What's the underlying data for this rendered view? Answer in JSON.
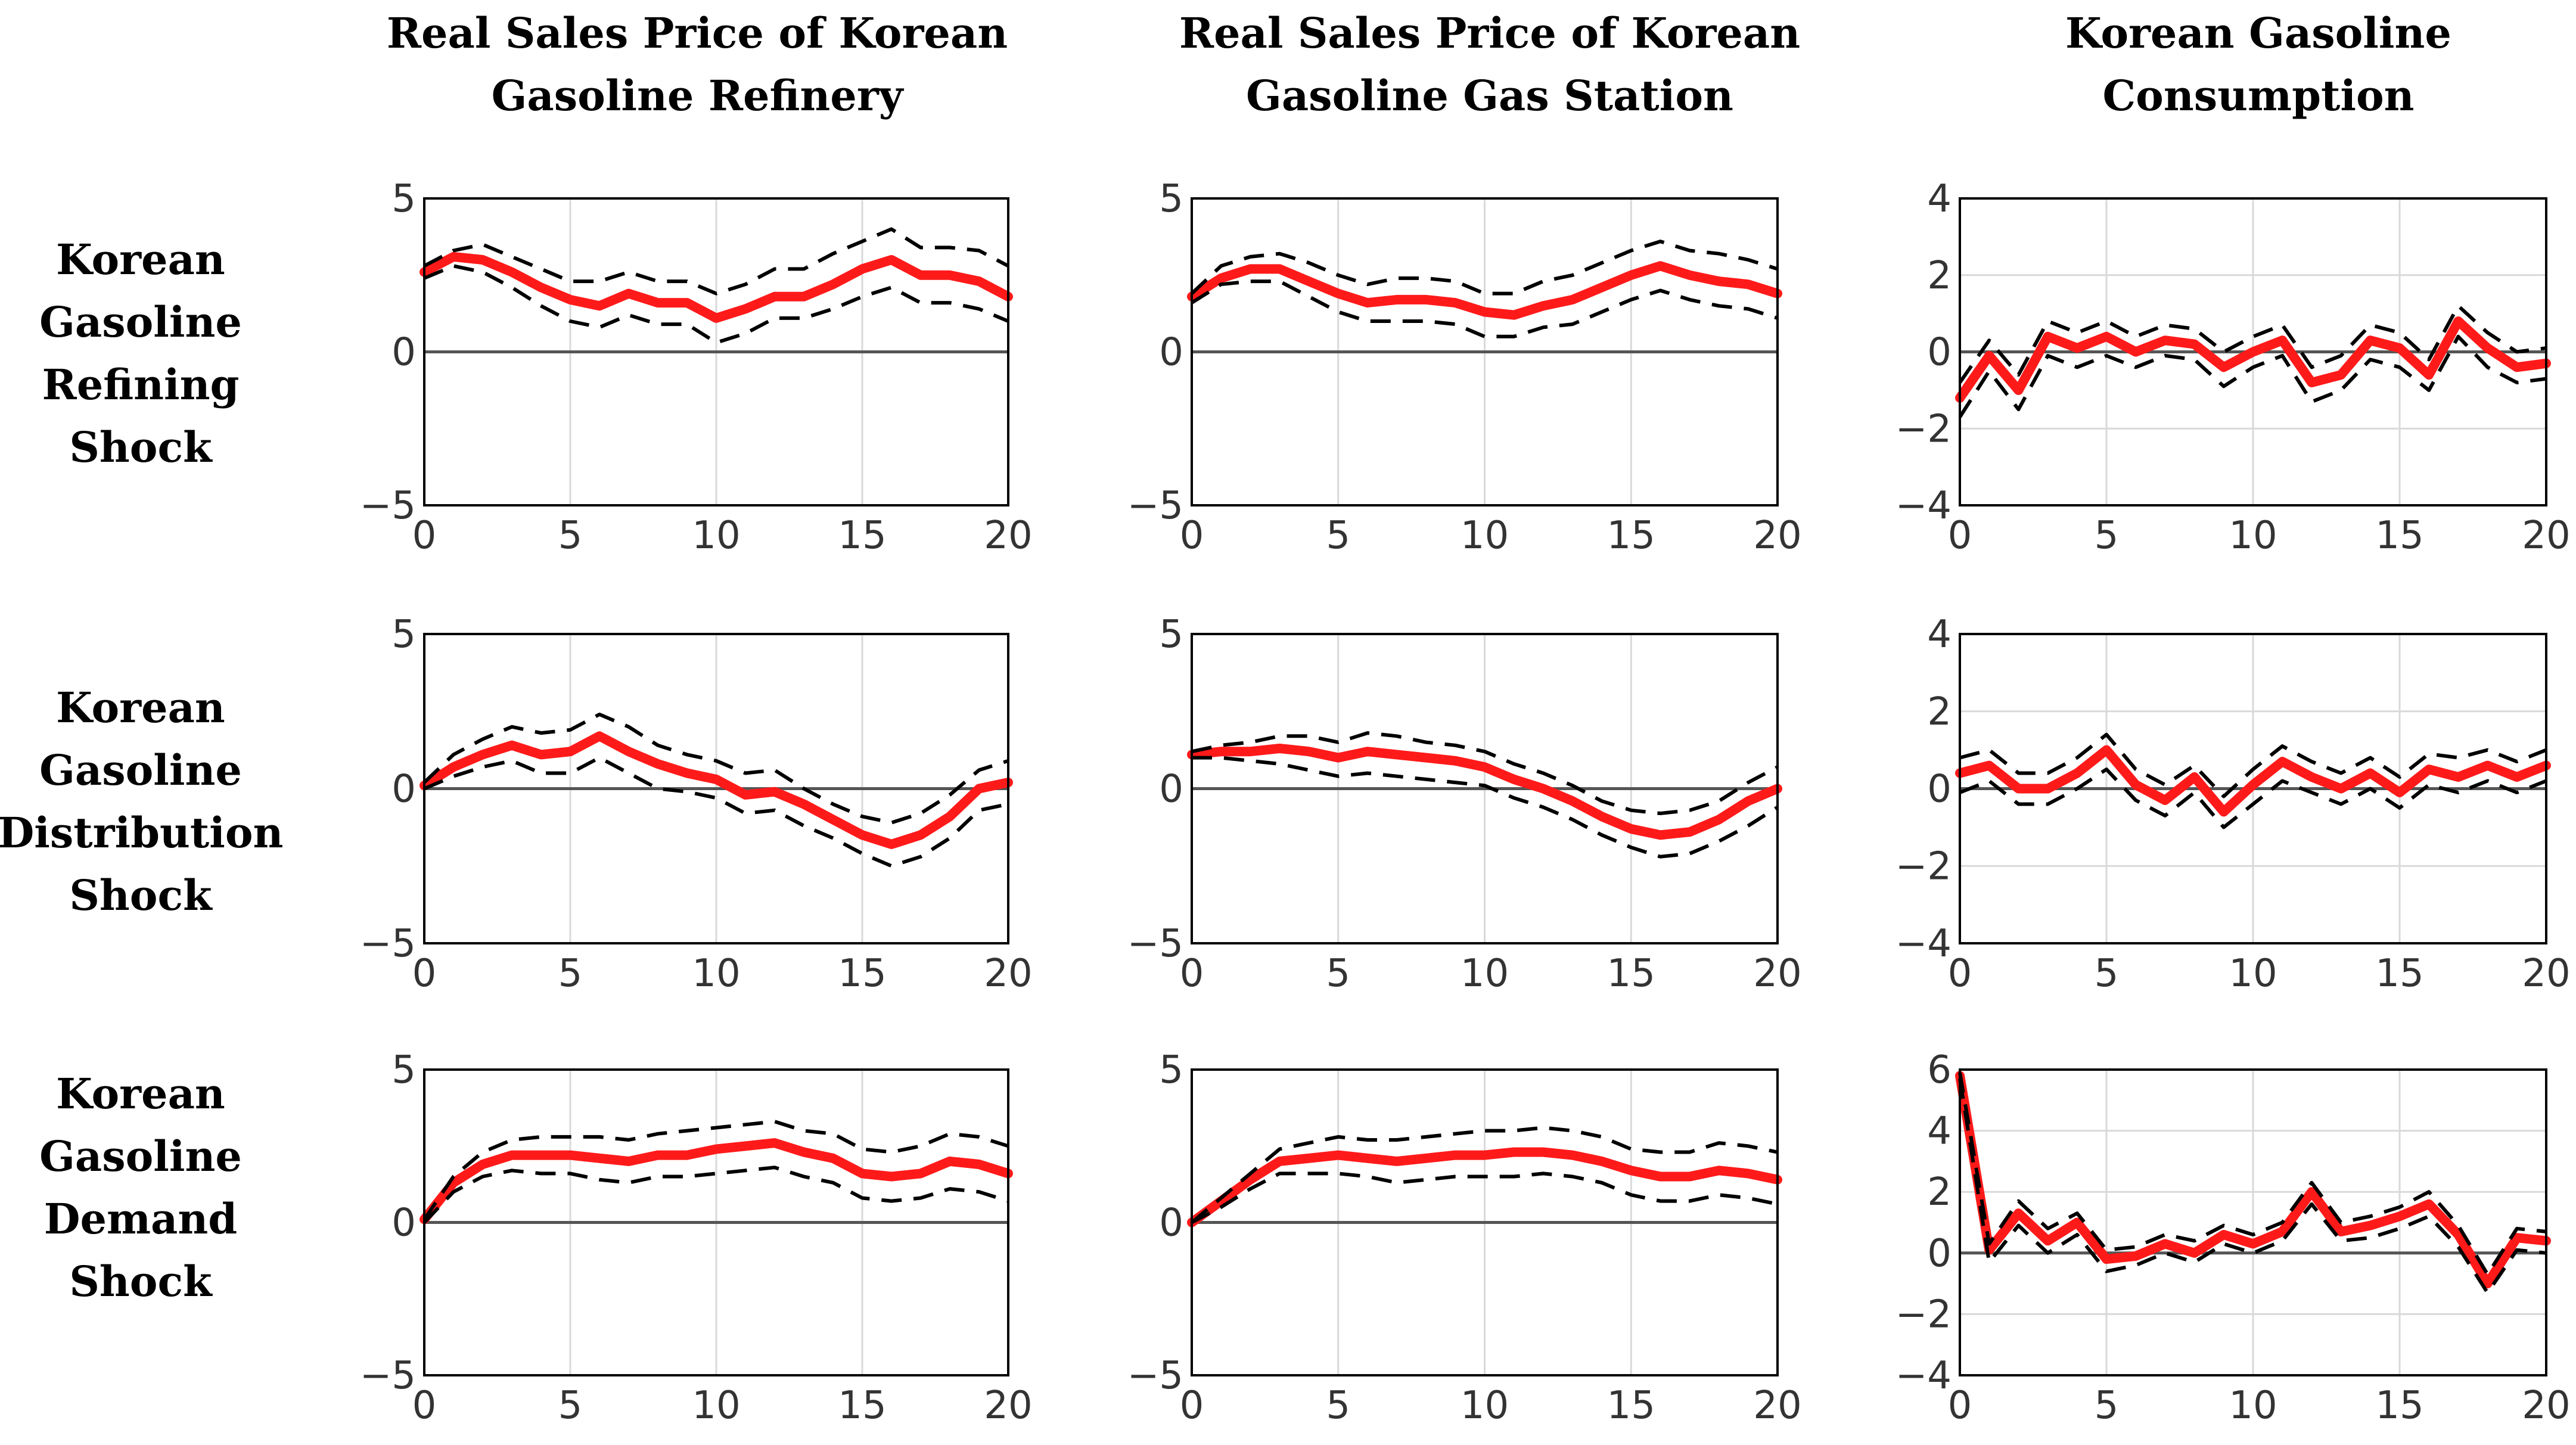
{
  "figure": {
    "column_titles": [
      [
        "Real Sales Price of Korean",
        "Gasoline Refinery"
      ],
      [
        "Real Sales Price of Korean",
        "Gasoline Gas Station"
      ],
      [
        "Korean Gasoline",
        "Consumption"
      ]
    ],
    "row_labels": [
      [
        "Korean",
        "Gasoline",
        "Refining",
        "Shock"
      ],
      [
        "Korean",
        "Gasoline",
        "Distribution",
        "Shock"
      ],
      [
        "Korean",
        "Gasoline",
        "Demand",
        "Shock"
      ]
    ]
  },
  "colors": {
    "response": "#ff1a1a",
    "bands": "#000000",
    "zero_line": "#555555",
    "grid": "#d9d9d9",
    "frame": "#000000"
  },
  "chart_data": [
    {
      "type": "line",
      "shock": "Korean Gasoline Refining Shock",
      "variable": "Real Sales Price of Korean Gasoline Refinery",
      "x": [
        0,
        1,
        2,
        3,
        4,
        5,
        6,
        7,
        8,
        9,
        10,
        11,
        12,
        13,
        14,
        15,
        16,
        17,
        18,
        19,
        20
      ],
      "xlim": [
        0,
        20
      ],
      "ylim": [
        -5,
        5
      ],
      "xticks": [
        0,
        5,
        10,
        15,
        20
      ],
      "yticks": [
        -5,
        0,
        5
      ],
      "ytick_labels": [
        "−5",
        "0",
        "5"
      ],
      "series": [
        {
          "name": "response",
          "values": [
            2.6,
            3.1,
            3.0,
            2.6,
            2.1,
            1.7,
            1.5,
            1.9,
            1.6,
            1.6,
            1.1,
            1.4,
            1.8,
            1.8,
            2.2,
            2.7,
            3.0,
            2.5,
            2.5,
            2.3,
            1.8
          ]
        },
        {
          "name": "upper band",
          "values": [
            2.8,
            3.3,
            3.5,
            3.1,
            2.7,
            2.3,
            2.3,
            2.6,
            2.3,
            2.3,
            1.9,
            2.2,
            2.7,
            2.7,
            3.2,
            3.6,
            4.0,
            3.4,
            3.4,
            3.3,
            2.8
          ]
        },
        {
          "name": "lower band",
          "values": [
            2.4,
            2.8,
            2.6,
            2.1,
            1.5,
            1.0,
            0.8,
            1.2,
            0.9,
            0.9,
            0.3,
            0.6,
            1.1,
            1.1,
            1.4,
            1.8,
            2.1,
            1.6,
            1.6,
            1.4,
            1.0
          ]
        }
      ]
    },
    {
      "type": "line",
      "shock": "Korean Gasoline Refining Shock",
      "variable": "Real Sales Price of Korean Gasoline Gas Station",
      "x": [
        0,
        1,
        2,
        3,
        4,
        5,
        6,
        7,
        8,
        9,
        10,
        11,
        12,
        13,
        14,
        15,
        16,
        17,
        18,
        19,
        20
      ],
      "xlim": [
        0,
        20
      ],
      "ylim": [
        -5,
        5
      ],
      "xticks": [
        0,
        5,
        10,
        15,
        20
      ],
      "yticks": [
        -5,
        0,
        5
      ],
      "ytick_labels": [
        "−5",
        "0",
        "5"
      ],
      "series": [
        {
          "name": "response",
          "values": [
            1.8,
            2.4,
            2.7,
            2.7,
            2.3,
            1.9,
            1.6,
            1.7,
            1.7,
            1.6,
            1.3,
            1.2,
            1.5,
            1.7,
            2.1,
            2.5,
            2.8,
            2.5,
            2.3,
            2.2,
            1.9
          ]
        },
        {
          "name": "upper band",
          "values": [
            1.9,
            2.8,
            3.1,
            3.2,
            2.9,
            2.5,
            2.2,
            2.4,
            2.4,
            2.3,
            1.9,
            1.9,
            2.3,
            2.5,
            2.9,
            3.3,
            3.6,
            3.3,
            3.2,
            3.0,
            2.7
          ]
        },
        {
          "name": "lower band",
          "values": [
            1.6,
            2.2,
            2.3,
            2.3,
            1.8,
            1.3,
            1.0,
            1.0,
            1.0,
            0.9,
            0.5,
            0.5,
            0.8,
            0.9,
            1.3,
            1.7,
            2.0,
            1.7,
            1.5,
            1.4,
            1.1
          ]
        }
      ]
    },
    {
      "type": "line",
      "shock": "Korean Gasoline Refining Shock",
      "variable": "Korean Gasoline Consumption",
      "x": [
        0,
        1,
        2,
        3,
        4,
        5,
        6,
        7,
        8,
        9,
        10,
        11,
        12,
        13,
        14,
        15,
        16,
        17,
        18,
        19,
        20
      ],
      "xlim": [
        0,
        20
      ],
      "ylim": [
        -4,
        4
      ],
      "xticks": [
        0,
        5,
        10,
        15,
        20
      ],
      "yticks": [
        -4,
        -2,
        0,
        2,
        4
      ],
      "ytick_labels": [
        "−4",
        "−2",
        "0",
        "2",
        "4"
      ],
      "series": [
        {
          "name": "response",
          "values": [
            -1.2,
            -0.1,
            -1.0,
            0.4,
            0.1,
            0.4,
            0.0,
            0.3,
            0.2,
            -0.4,
            0.0,
            0.3,
            -0.8,
            -0.6,
            0.3,
            0.1,
            -0.6,
            0.8,
            0.1,
            -0.4,
            -0.3
          ]
        },
        {
          "name": "upper band",
          "values": [
            -0.8,
            0.3,
            -0.6,
            0.8,
            0.5,
            0.8,
            0.4,
            0.7,
            0.6,
            0.0,
            0.4,
            0.7,
            -0.4,
            -0.1,
            0.7,
            0.5,
            -0.2,
            1.2,
            0.5,
            0.0,
            0.1
          ]
        },
        {
          "name": "lower band",
          "values": [
            -1.7,
            -0.5,
            -1.5,
            -0.1,
            -0.4,
            -0.1,
            -0.4,
            -0.1,
            -0.2,
            -0.9,
            -0.4,
            -0.1,
            -1.3,
            -1.0,
            -0.2,
            -0.4,
            -1.0,
            0.4,
            -0.4,
            -0.8,
            -0.7
          ]
        }
      ]
    },
    {
      "type": "line",
      "shock": "Korean Gasoline Distribution Shock",
      "variable": "Real Sales Price of Korean Gasoline Refinery",
      "x": [
        0,
        1,
        2,
        3,
        4,
        5,
        6,
        7,
        8,
        9,
        10,
        11,
        12,
        13,
        14,
        15,
        16,
        17,
        18,
        19,
        20
      ],
      "xlim": [
        0,
        20
      ],
      "ylim": [
        -5,
        5
      ],
      "xticks": [
        0,
        5,
        10,
        15,
        20
      ],
      "yticks": [
        -5,
        0,
        5
      ],
      "ytick_labels": [
        "−5",
        "0",
        "5"
      ],
      "series": [
        {
          "name": "response",
          "values": [
            0.1,
            0.7,
            1.1,
            1.4,
            1.1,
            1.2,
            1.7,
            1.2,
            0.8,
            0.5,
            0.3,
            -0.2,
            -0.1,
            -0.5,
            -1.0,
            -1.5,
            -1.8,
            -1.5,
            -0.9,
            0.0,
            0.2
          ]
        },
        {
          "name": "upper band",
          "values": [
            0.2,
            1.1,
            1.6,
            2.0,
            1.8,
            1.9,
            2.4,
            2.0,
            1.4,
            1.1,
            0.9,
            0.5,
            0.6,
            0.0,
            -0.5,
            -0.9,
            -1.1,
            -0.8,
            -0.2,
            0.6,
            0.9
          ]
        },
        {
          "name": "lower band",
          "values": [
            0.0,
            0.4,
            0.7,
            0.9,
            0.5,
            0.5,
            1.0,
            0.5,
            0.0,
            -0.1,
            -0.3,
            -0.8,
            -0.7,
            -1.2,
            -1.6,
            -2.1,
            -2.5,
            -2.2,
            -1.6,
            -0.7,
            -0.5
          ]
        }
      ]
    },
    {
      "type": "line",
      "shock": "Korean Gasoline Distribution Shock",
      "variable": "Real Sales Price of Korean Gasoline Gas Station",
      "x": [
        0,
        1,
        2,
        3,
        4,
        5,
        6,
        7,
        8,
        9,
        10,
        11,
        12,
        13,
        14,
        15,
        16,
        17,
        18,
        19,
        20
      ],
      "xlim": [
        0,
        20
      ],
      "ylim": [
        -5,
        5
      ],
      "xticks": [
        0,
        5,
        10,
        15,
        20
      ],
      "yticks": [
        -5,
        0,
        5
      ],
      "ytick_labels": [
        "−5",
        "0",
        "5"
      ],
      "series": [
        {
          "name": "response",
          "values": [
            1.1,
            1.2,
            1.2,
            1.3,
            1.2,
            1.0,
            1.2,
            1.1,
            1.0,
            0.9,
            0.7,
            0.3,
            0.0,
            -0.4,
            -0.9,
            -1.3,
            -1.5,
            -1.4,
            -1.0,
            -0.4,
            0.0
          ]
        },
        {
          "name": "upper band",
          "values": [
            1.2,
            1.4,
            1.5,
            1.7,
            1.7,
            1.5,
            1.8,
            1.7,
            1.5,
            1.4,
            1.2,
            0.8,
            0.5,
            0.1,
            -0.4,
            -0.7,
            -0.8,
            -0.7,
            -0.4,
            0.2,
            0.7
          ]
        },
        {
          "name": "lower band",
          "values": [
            1.0,
            1.0,
            0.9,
            0.8,
            0.6,
            0.4,
            0.5,
            0.4,
            0.3,
            0.2,
            0.1,
            -0.3,
            -0.6,
            -1.0,
            -1.5,
            -1.9,
            -2.2,
            -2.1,
            -1.7,
            -1.2,
            -0.6
          ]
        }
      ]
    },
    {
      "type": "line",
      "shock": "Korean Gasoline Distribution Shock",
      "variable": "Korean Gasoline Consumption",
      "x": [
        0,
        1,
        2,
        3,
        4,
        5,
        6,
        7,
        8,
        9,
        10,
        11,
        12,
        13,
        14,
        15,
        16,
        17,
        18,
        19,
        20
      ],
      "xlim": [
        0,
        20
      ],
      "ylim": [
        -4,
        4
      ],
      "xticks": [
        0,
        5,
        10,
        15,
        20
      ],
      "yticks": [
        -4,
        -2,
        0,
        2,
        4
      ],
      "ytick_labels": [
        "−4",
        "−2",
        "0",
        "2",
        "4"
      ],
      "series": [
        {
          "name": "response",
          "values": [
            0.4,
            0.6,
            0.0,
            0.0,
            0.4,
            1.0,
            0.1,
            -0.3,
            0.3,
            -0.6,
            0.1,
            0.7,
            0.3,
            0.0,
            0.4,
            -0.1,
            0.5,
            0.3,
            0.6,
            0.3,
            0.6
          ]
        },
        {
          "name": "upper band",
          "values": [
            0.8,
            1.0,
            0.4,
            0.4,
            0.8,
            1.4,
            0.5,
            0.1,
            0.6,
            -0.2,
            0.5,
            1.1,
            0.7,
            0.4,
            0.8,
            0.3,
            0.9,
            0.8,
            1.0,
            0.7,
            1.0
          ]
        },
        {
          "name": "lower band",
          "values": [
            -0.1,
            0.2,
            -0.4,
            -0.4,
            0.0,
            0.5,
            -0.3,
            -0.7,
            -0.1,
            -1.0,
            -0.4,
            0.2,
            -0.1,
            -0.4,
            0.0,
            -0.5,
            0.1,
            -0.1,
            0.2,
            -0.1,
            0.2
          ]
        }
      ]
    },
    {
      "type": "line",
      "shock": "Korean Gasoline Demand Shock",
      "variable": "Real Sales Price of Korean Gasoline Refinery",
      "x": [
        0,
        1,
        2,
        3,
        4,
        5,
        6,
        7,
        8,
        9,
        10,
        11,
        12,
        13,
        14,
        15,
        16,
        17,
        18,
        19,
        20
      ],
      "xlim": [
        0,
        20
      ],
      "ylim": [
        -5,
        5
      ],
      "xticks": [
        0,
        5,
        10,
        15,
        20
      ],
      "yticks": [
        -5,
        0,
        5
      ],
      "ytick_labels": [
        "−5",
        "0",
        "5"
      ],
      "series": [
        {
          "name": "response",
          "values": [
            0.1,
            1.3,
            1.9,
            2.2,
            2.2,
            2.2,
            2.1,
            2.0,
            2.2,
            2.2,
            2.4,
            2.5,
            2.6,
            2.3,
            2.1,
            1.6,
            1.5,
            1.6,
            2.0,
            1.9,
            1.6
          ]
        },
        {
          "name": "upper band",
          "values": [
            0.1,
            1.5,
            2.3,
            2.7,
            2.8,
            2.8,
            2.8,
            2.7,
            2.9,
            3.0,
            3.1,
            3.2,
            3.3,
            3.0,
            2.9,
            2.4,
            2.3,
            2.5,
            2.9,
            2.8,
            2.5
          ]
        },
        {
          "name": "lower band",
          "values": [
            0.0,
            1.0,
            1.5,
            1.7,
            1.6,
            1.6,
            1.4,
            1.3,
            1.5,
            1.5,
            1.6,
            1.7,
            1.8,
            1.5,
            1.3,
            0.8,
            0.7,
            0.8,
            1.1,
            1.0,
            0.7
          ]
        }
      ]
    },
    {
      "type": "line",
      "shock": "Korean Gasoline Demand Shock",
      "variable": "Real Sales Price of Korean Gasoline Gas Station",
      "x": [
        0,
        1,
        2,
        3,
        4,
        5,
        6,
        7,
        8,
        9,
        10,
        11,
        12,
        13,
        14,
        15,
        16,
        17,
        18,
        19,
        20
      ],
      "xlim": [
        0,
        20
      ],
      "ylim": [
        -5,
        5
      ],
      "xticks": [
        0,
        5,
        10,
        15,
        20
      ],
      "yticks": [
        -5,
        0,
        5
      ],
      "ytick_labels": [
        "−5",
        "0",
        "5"
      ],
      "series": [
        {
          "name": "response",
          "values": [
            0.0,
            0.7,
            1.4,
            2.0,
            2.1,
            2.2,
            2.1,
            2.0,
            2.1,
            2.2,
            2.2,
            2.3,
            2.3,
            2.2,
            2.0,
            1.7,
            1.5,
            1.5,
            1.7,
            1.6,
            1.4
          ]
        },
        {
          "name": "upper band",
          "values": [
            0.0,
            0.8,
            1.6,
            2.4,
            2.6,
            2.8,
            2.7,
            2.7,
            2.8,
            2.9,
            3.0,
            3.0,
            3.1,
            3.0,
            2.8,
            2.4,
            2.3,
            2.3,
            2.6,
            2.5,
            2.3
          ]
        },
        {
          "name": "lower band",
          "values": [
            0.0,
            0.5,
            1.1,
            1.6,
            1.6,
            1.6,
            1.5,
            1.3,
            1.4,
            1.5,
            1.5,
            1.5,
            1.6,
            1.5,
            1.3,
            0.9,
            0.7,
            0.7,
            0.9,
            0.8,
            0.6
          ]
        }
      ]
    },
    {
      "type": "line",
      "shock": "Korean Gasoline Demand Shock",
      "variable": "Korean Gasoline Consumption",
      "x": [
        0,
        1,
        2,
        3,
        4,
        5,
        6,
        7,
        8,
        9,
        10,
        11,
        12,
        13,
        14,
        15,
        16,
        17,
        18,
        19,
        20
      ],
      "xlim": [
        0,
        20
      ],
      "ylim": [
        -4,
        6
      ],
      "xticks": [
        0,
        5,
        10,
        15,
        20
      ],
      "yticks": [
        -4,
        -2,
        0,
        2,
        4,
        6
      ],
      "ytick_labels": [
        "−4",
        "−2",
        "0",
        "2",
        "4",
        "6"
      ],
      "series": [
        {
          "name": "response",
          "values": [
            5.8,
            0.1,
            1.3,
            0.4,
            1.0,
            -0.2,
            -0.1,
            0.3,
            0.0,
            0.6,
            0.3,
            0.7,
            2.0,
            0.7,
            0.9,
            1.2,
            1.6,
            0.6,
            -1.0,
            0.5,
            0.4
          ]
        },
        {
          "name": "upper band",
          "values": [
            5.9,
            0.3,
            1.7,
            0.8,
            1.3,
            0.1,
            0.2,
            0.6,
            0.4,
            0.9,
            0.6,
            1.0,
            2.3,
            1.0,
            1.2,
            1.5,
            2.0,
            0.9,
            -0.7,
            0.8,
            0.7
          ]
        },
        {
          "name": "lower band",
          "values": [
            5.7,
            -0.3,
            0.9,
            0.0,
            0.6,
            -0.6,
            -0.4,
            0.0,
            -0.3,
            0.3,
            0.0,
            0.4,
            1.6,
            0.4,
            0.5,
            0.8,
            1.2,
            0.2,
            -1.3,
            0.1,
            0.0
          ]
        }
      ]
    }
  ]
}
